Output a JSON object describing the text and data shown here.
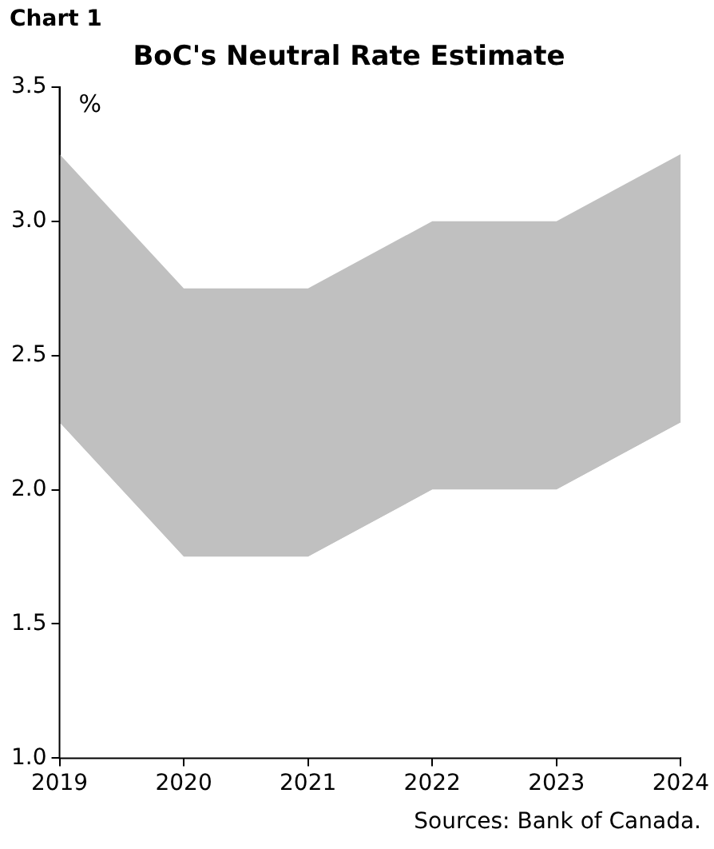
{
  "chart_data": {
    "type": "area",
    "subtitle": "Chart 1",
    "title": "BoC's Neutral Rate Estimate",
    "ylabel": "%",
    "stacked": true,
    "x": [
      2019,
      2020,
      2021,
      2022,
      2023,
      2024
    ],
    "series": [
      {
        "color": "#ffffff",
        "values": [
          2.25,
          1.75,
          1.75,
          2.0,
          2.0,
          2.25
        ]
      },
      {
        "color": "#c0c0c0",
        "values": [
          1.0,
          1.0,
          1.0,
          1.0,
          1.0,
          1.0
        ]
      }
    ],
    "xlim": [
      2019,
      2024
    ],
    "xticks": [
      2019,
      2020,
      2021,
      2022,
      2023,
      2024
    ],
    "ylim": [
      1,
      3.5
    ],
    "yticks": [
      {
        "value": 1,
        "label": "1.0"
      },
      1.5,
      {
        "value": 2,
        "label": "2.0"
      },
      2.5,
      {
        "value": 3,
        "label": "3.0"
      },
      3.5
    ],
    "grid": false,
    "legend": false,
    "annotations": [
      "Sources: Bank of Canada."
    ]
  }
}
